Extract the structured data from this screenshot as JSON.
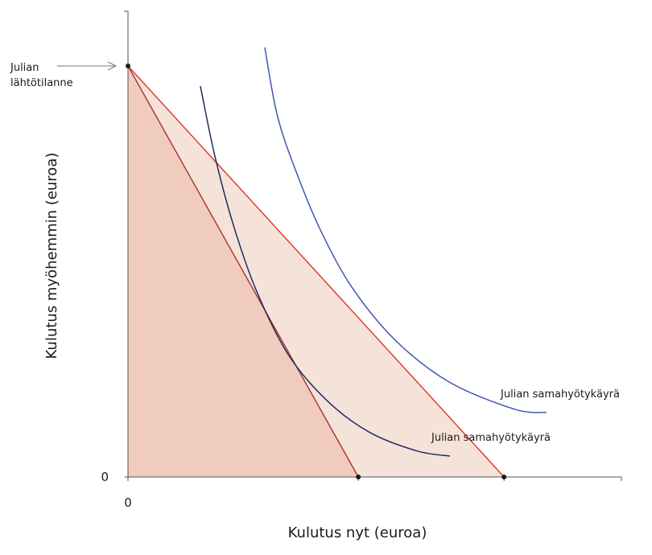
{
  "chart_data": {
    "type": "line",
    "xlabel": "Kulutus nyt (euroa)",
    "ylabel": "Kulutus myöhemmin (euroa)",
    "x_tick_labels": [
      "0"
    ],
    "y_tick_labels": [
      "0"
    ],
    "xlim": [
      0,
      100
    ],
    "ylim": [
      0,
      100
    ],
    "grid": false,
    "annotations": {
      "start_label_line1": "Julian",
      "start_label_line2": "lähtötilanne"
    },
    "points": [
      {
        "x": 0,
        "y": 100
      },
      {
        "x": 49,
        "y": 0
      },
      {
        "x": 80,
        "y": 0
      }
    ],
    "constraints": [
      {
        "x": [
          0,
          49
        ],
        "y": [
          100,
          0
        ],
        "color": "#a8322a"
      },
      {
        "x": [
          0,
          80
        ],
        "y": [
          100,
          0
        ],
        "color": "#e03424"
      }
    ],
    "regions": [
      {
        "vertices": [
          [
            0,
            0
          ],
          [
            0,
            100
          ],
          [
            49,
            0
          ]
        ],
        "color": "#f0ccbf"
      },
      {
        "vertices": [
          [
            0,
            100
          ],
          [
            49,
            0
          ],
          [
            80,
            0
          ]
        ],
        "color": "#f5e3da"
      }
    ],
    "series": [
      {
        "name": "Julian samahyötykäyrä",
        "color": "#1f2a5e",
        "x": [
          15.4,
          18.5,
          22.5,
          27.4,
          34.2,
          42.5,
          51.5,
          61.6,
          68.5
        ],
        "y": [
          95.1,
          78,
          61,
          45.1,
          29.6,
          18.4,
          10.8,
          6.3,
          5.1
        ]
      },
      {
        "name": "Julian samahyötykäyrä",
        "color": "#3f56b0",
        "x": [
          29.1,
          31.8,
          36,
          41.1,
          47.9,
          57.2,
          68.5,
          82.2,
          89
        ],
        "y": [
          104.5,
          87.8,
          73.6,
          59.7,
          45.7,
          32.9,
          23,
          16.5,
          15.7
        ]
      }
    ]
  }
}
